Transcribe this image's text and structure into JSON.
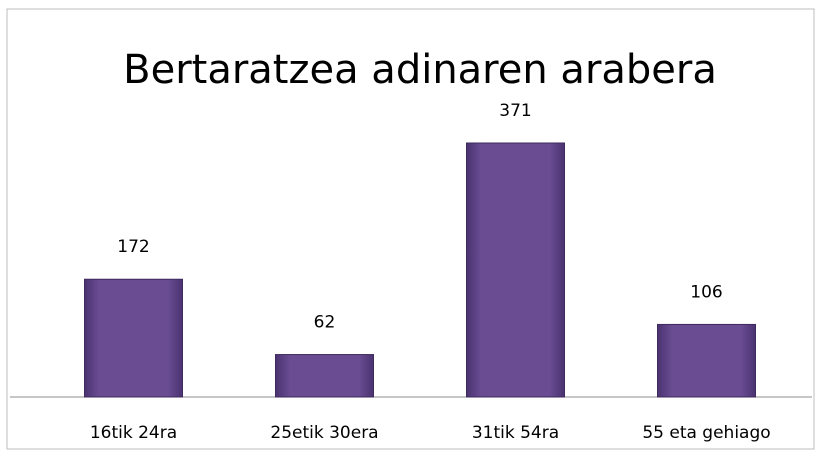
{
  "chart_data": {
    "type": "bar",
    "title": "Bertaratzea adinaren arabera",
    "categories": [
      "16tik 24ra",
      "25etik 30era",
      "31tik 54ra",
      "55 eta gehiago"
    ],
    "values": [
      172,
      62,
      371,
      106
    ],
    "color": "#6a4c93"
  }
}
